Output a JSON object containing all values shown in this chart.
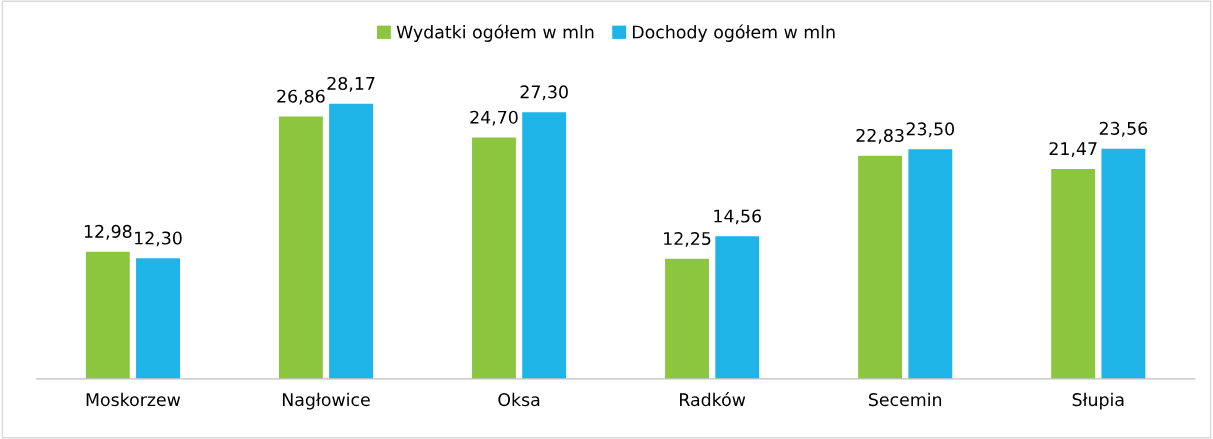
{
  "chart_data": {
    "type": "bar",
    "categories": [
      "Moskorzew",
      "Nagłowice",
      "Oksa",
      "Radków",
      "Secemin",
      "Słupia"
    ],
    "series": [
      {
        "name": "Wydatki ogółem w mln",
        "color": "#8cc63e",
        "values": [
          12.98,
          26.86,
          24.7,
          12.25,
          22.83,
          21.47
        ],
        "value_labels": [
          "12,98",
          "26,86",
          "24,70",
          "12,25",
          "22,83",
          "21,47"
        ]
      },
      {
        "name": "Dochody ogółem w mln",
        "color": "#1eb4e8",
        "values": [
          12.3,
          28.17,
          27.3,
          14.56,
          23.5,
          23.56
        ],
        "value_labels": [
          "12,30",
          "28,17",
          "27,30",
          "14,56",
          "23,50",
          "23,56"
        ]
      }
    ],
    "legend": "top",
    "grid": false
  }
}
